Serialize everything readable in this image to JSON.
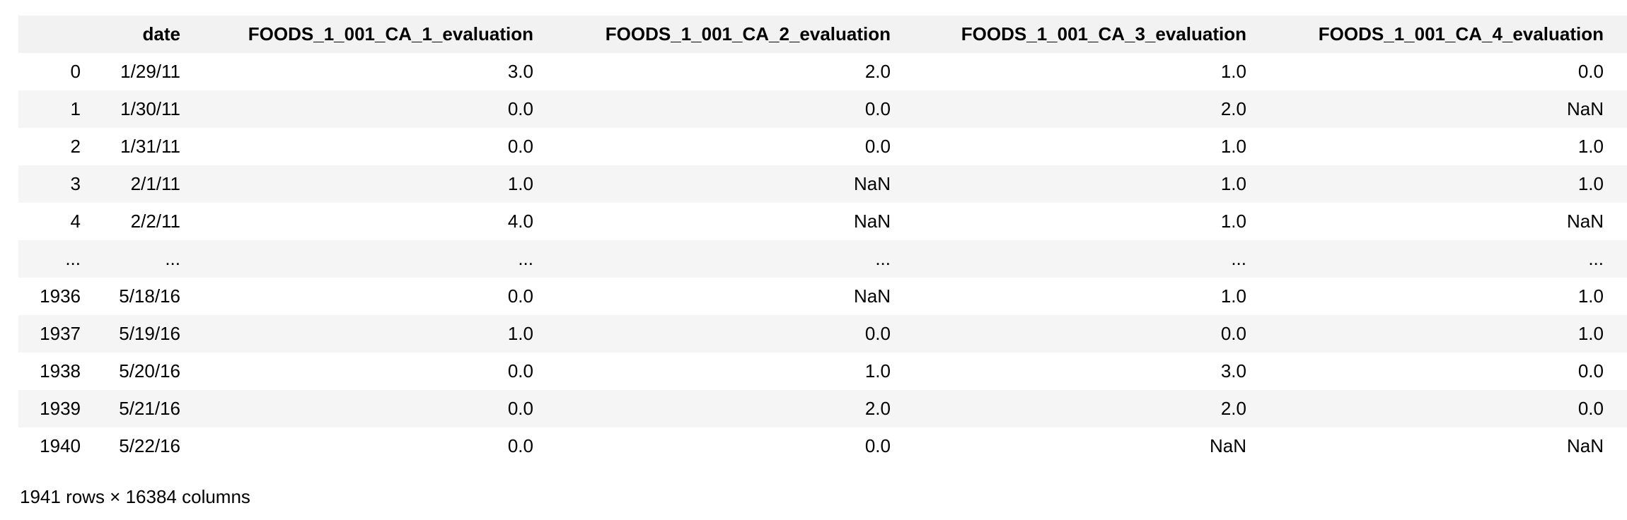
{
  "table": {
    "columns": [
      "date",
      "FOODS_1_001_CA_1_evaluation",
      "FOODS_1_001_CA_2_evaluation",
      "FOODS_1_001_CA_3_evaluation",
      "FOODS_1_001_CA_4_evaluation"
    ],
    "rows": [
      {
        "index": "0",
        "cells": [
          "1/29/11",
          "3.0",
          "2.0",
          "1.0",
          "0.0"
        ]
      },
      {
        "index": "1",
        "cells": [
          "1/30/11",
          "0.0",
          "0.0",
          "2.0",
          "NaN"
        ]
      },
      {
        "index": "2",
        "cells": [
          "1/31/11",
          "0.0",
          "0.0",
          "1.0",
          "1.0"
        ]
      },
      {
        "index": "3",
        "cells": [
          "2/1/11",
          "1.0",
          "NaN",
          "1.0",
          "1.0"
        ]
      },
      {
        "index": "4",
        "cells": [
          "2/2/11",
          "4.0",
          "NaN",
          "1.0",
          "NaN"
        ]
      },
      {
        "index": "...",
        "cells": [
          "...",
          "...",
          "...",
          "...",
          "..."
        ]
      },
      {
        "index": "1936",
        "cells": [
          "5/18/16",
          "0.0",
          "NaN",
          "1.0",
          "1.0"
        ]
      },
      {
        "index": "1937",
        "cells": [
          "5/19/16",
          "1.0",
          "0.0",
          "0.0",
          "1.0"
        ]
      },
      {
        "index": "1938",
        "cells": [
          "5/20/16",
          "0.0",
          "1.0",
          "3.0",
          "0.0"
        ]
      },
      {
        "index": "1939",
        "cells": [
          "5/21/16",
          "0.0",
          "2.0",
          "2.0",
          "0.0"
        ]
      },
      {
        "index": "1940",
        "cells": [
          "5/22/16",
          "0.0",
          "0.0",
          "NaN",
          "NaN"
        ]
      }
    ],
    "footer": "1941 rows × 16384 columns"
  }
}
